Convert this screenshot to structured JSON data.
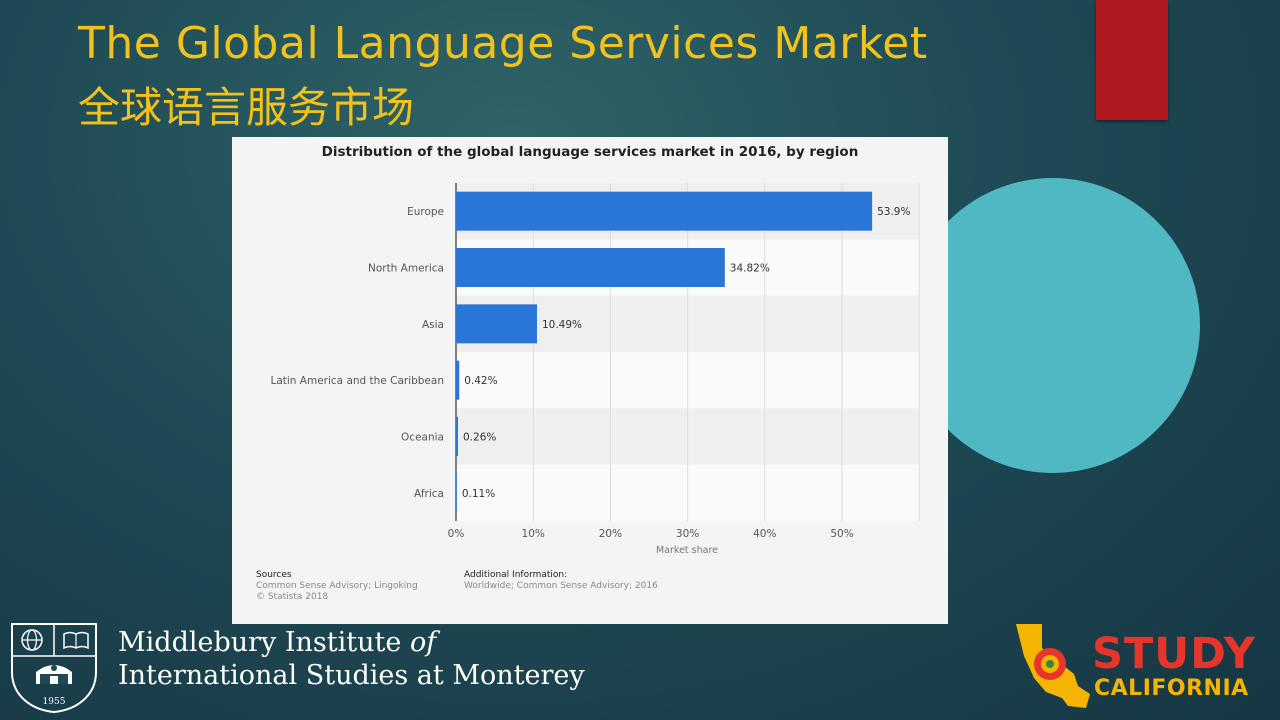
{
  "slide": {
    "title_en": "The Global Language Services Market",
    "title_zh": "全球语言服务市场",
    "colors": {
      "title": "#f1c21b",
      "accent_red": "#b0191e",
      "accent_teal": "#4fb8c3",
      "bar": "#2a76d8"
    }
  },
  "chart_data": {
    "type": "bar",
    "orientation": "horizontal",
    "title": "Distribution of the global language services market in 2016, by region",
    "categories": [
      "Europe",
      "North America",
      "Asia",
      "Latin America and the Caribbean",
      "Oceania",
      "Africa"
    ],
    "values": [
      53.9,
      34.82,
      10.49,
      0.42,
      0.26,
      0.11
    ],
    "value_labels": [
      "53.9%",
      "34.82%",
      "10.49%",
      "0.42%",
      "0.26%",
      "0.11%"
    ],
    "xlabel": "Market share",
    "xticks": [
      "0%",
      "10%",
      "20%",
      "30%",
      "40%",
      "50%"
    ],
    "xlim": [
      0,
      60
    ],
    "grid": true
  },
  "footer": {
    "sources_heading": "Sources",
    "sources_line1": "Common Sense Advisory; Lingoking",
    "sources_line2": "© Statista 2018",
    "info_heading": "Additional Information:",
    "info_line1": "Worldwide; Common Sense Advisory; 2016"
  },
  "branding": {
    "inst_line1": "Middlebury Institute ",
    "inst_of": "of",
    "inst_line2": "International Studies at Monterey",
    "seal_year": "1955",
    "study": "STUDY",
    "california": "CALIFORNIA"
  }
}
